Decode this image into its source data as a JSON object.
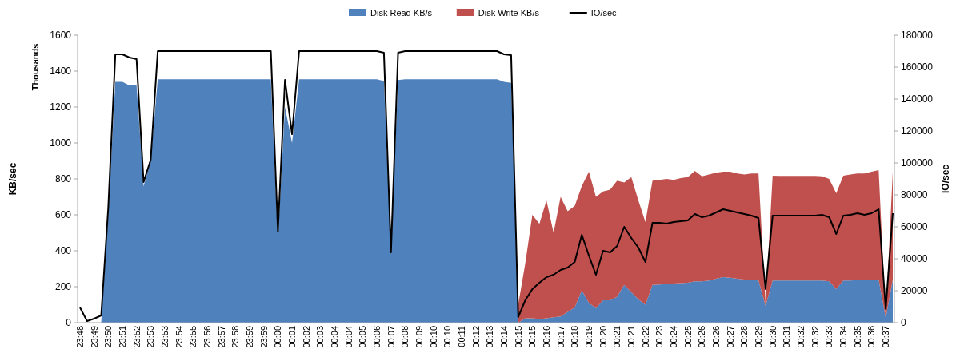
{
  "chart_data": {
    "type": "area",
    "stacked": true,
    "legend": "top",
    "ylabel": "KB/sec",
    "y2label": "IO/sec",
    "annotations": [
      "Thousands"
    ],
    "ylim": [
      0,
      1600
    ],
    "yticks": [
      0,
      200,
      400,
      600,
      800,
      1000,
      1200,
      1400,
      1600
    ],
    "y2lim": [
      0,
      180000
    ],
    "y2ticks": [
      0,
      20000,
      40000,
      60000,
      80000,
      100000,
      120000,
      140000,
      160000,
      180000
    ],
    "categories": [
      "23:48",
      null,
      "23:49",
      null,
      "23:50",
      null,
      "23:51",
      null,
      "23:52",
      null,
      "23:53",
      null,
      "23:53",
      null,
      "23:54",
      null,
      "23:55",
      null,
      "23:56",
      null,
      "23:57",
      null,
      "23:58",
      null,
      "23:59",
      null,
      "23:59",
      null,
      "00:00",
      null,
      "00:01",
      null,
      "00:02",
      null,
      "00:03",
      null,
      "00:04",
      null,
      "00:04",
      null,
      "00:05",
      null,
      "00:06",
      null,
      "00:07",
      null,
      "00:08",
      null,
      "00:09",
      null,
      "00:10",
      null,
      "00:10",
      null,
      "00:11",
      null,
      "00:12",
      null,
      "00:13",
      null,
      "00:14",
      null,
      "00:15",
      null,
      "00:15",
      null,
      "00:16",
      null,
      "00:17",
      null,
      "00:18",
      null,
      "00:19",
      null,
      "00:20",
      null,
      "00:21",
      null,
      "00:21",
      null,
      "00:22",
      null,
      "00:23",
      null,
      "00:24",
      null,
      "00:25",
      null,
      "00:26",
      null,
      "00:26",
      null,
      "00:27",
      null,
      "00:28",
      null,
      "00:29",
      null,
      "00:30",
      null,
      "00:31",
      null,
      "00:32",
      null,
      "00:32",
      null,
      "00:33",
      null,
      "00:34",
      null,
      "00:35",
      null,
      "00:36",
      null,
      "00:37",
      null
    ],
    "series": [
      {
        "name": "Disk Read KB/s",
        "color": "#4f81bd",
        "values": [
          0,
          0,
          0,
          0,
          600,
          1340,
          1340,
          1320,
          1320,
          760,
          900,
          1355,
          1355,
          1355,
          1355,
          1355,
          1355,
          1355,
          1355,
          1355,
          1355,
          1355,
          1355,
          1355,
          1355,
          1355,
          1355,
          1355,
          460,
          1200,
          1000,
          1355,
          1355,
          1355,
          1355,
          1355,
          1355,
          1355,
          1355,
          1355,
          1355,
          1355,
          1355,
          1345,
          395,
          1350,
          1355,
          1355,
          1355,
          1355,
          1355,
          1355,
          1355,
          1355,
          1355,
          1355,
          1355,
          1355,
          1355,
          1355,
          1340,
          1335,
          0,
          25,
          25,
          20,
          25,
          30,
          35,
          60,
          84,
          180,
          110,
          80,
          125,
          125,
          145,
          210,
          170,
          130,
          100,
          210,
          212,
          215,
          218,
          220,
          222,
          230,
          230,
          235,
          245,
          253,
          250,
          245,
          240,
          238,
          235,
          93,
          235,
          235,
          235,
          235,
          235,
          235,
          235,
          235,
          230,
          187,
          235,
          235,
          238,
          238,
          240,
          240,
          27,
          240
        ]
      },
      {
        "name": "Disk Write KB/s",
        "color": "#c0504d",
        "values": [
          null,
          null,
          null,
          null,
          null,
          null,
          null,
          null,
          null,
          null,
          null,
          null,
          null,
          null,
          null,
          null,
          null,
          null,
          null,
          null,
          null,
          null,
          null,
          null,
          null,
          null,
          null,
          null,
          null,
          null,
          null,
          null,
          null,
          null,
          null,
          null,
          null,
          null,
          null,
          null,
          null,
          null,
          null,
          null,
          null,
          null,
          null,
          null,
          null,
          null,
          null,
          null,
          null,
          null,
          null,
          null,
          null,
          null,
          null,
          null,
          null,
          null,
          100,
          305,
          575,
          530,
          655,
          470,
          665,
          560,
          566,
          580,
          730,
          620,
          605,
          615,
          645,
          570,
          640,
          550,
          460,
          580,
          583,
          585,
          577,
          585,
          588,
          615,
          585,
          590,
          590,
          587,
          590,
          585,
          585,
          592,
          595,
          14,
          583,
          582,
          582,
          582,
          582,
          582,
          582,
          580,
          570,
          533,
          583,
          590,
          592,
          592,
          600,
          609,
          3,
          600
        ]
      },
      {
        "name": "IO/sec",
        "type": "line",
        "axis": "y2",
        "color": "#000000",
        "values": [
          9500,
          1000,
          2500,
          4500,
          72000,
          168000,
          168000,
          166000,
          165000,
          88000,
          102000,
          170000,
          170000,
          170000,
          170000,
          170000,
          170000,
          170000,
          170000,
          170000,
          170000,
          170000,
          170000,
          170000,
          170000,
          170000,
          170000,
          170000,
          57000,
          152000,
          118000,
          170000,
          170000,
          170000,
          170000,
          170000,
          170000,
          170000,
          170000,
          170000,
          170000,
          170000,
          170000,
          169000,
          44000,
          169000,
          170000,
          170000,
          170000,
          170000,
          170000,
          170000,
          170000,
          170000,
          170000,
          170000,
          170000,
          170000,
          170000,
          170000,
          168000,
          167500,
          3500,
          14000,
          21000,
          25000,
          28500,
          30000,
          33000,
          34500,
          38000,
          55000,
          42000,
          30000,
          45000,
          44000,
          48000,
          60000,
          53000,
          47000,
          38000,
          62500,
          62500,
          62000,
          63000,
          63500,
          64000,
          68000,
          66000,
          67000,
          69000,
          71000,
          70000,
          69000,
          68000,
          67000,
          65500,
          21000,
          67000,
          67000,
          67000,
          67000,
          67000,
          67000,
          67000,
          67500,
          66000,
          55500,
          67000,
          67500,
          68500,
          67500,
          68500,
          71000,
          8500,
          68500
        ]
      }
    ]
  }
}
